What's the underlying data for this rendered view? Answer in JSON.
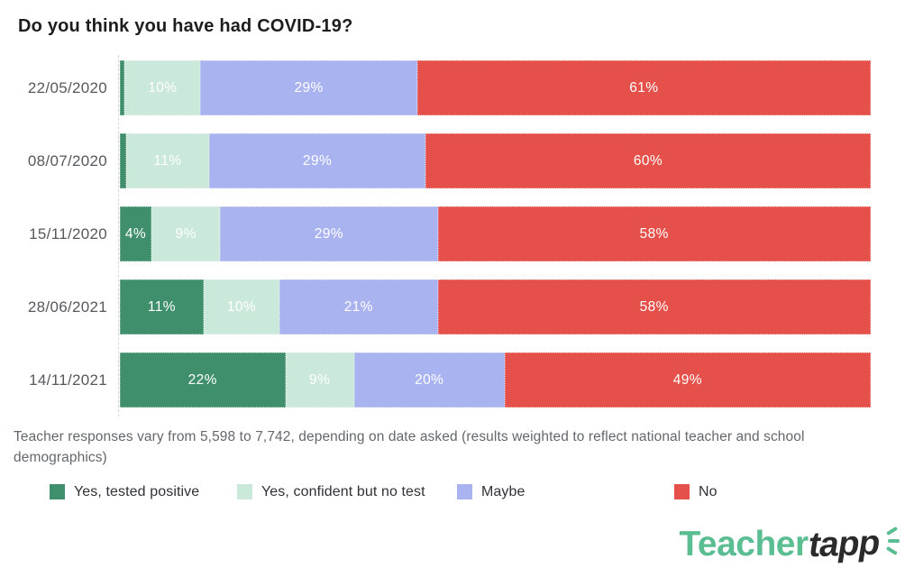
{
  "chart_data": {
    "type": "bar",
    "variant": "horizontal-stacked-100pct",
    "title": "Do you think you have had COVID-19?",
    "categories": [
      "22/05/2020",
      "08/07/2020",
      "15/11/2020",
      "28/06/2021",
      "14/11/2021"
    ],
    "series": [
      {
        "name": "Yes, tested positive",
        "color": "#3F8F6D",
        "values": [
          0.4,
          0.6,
          4,
          11,
          22
        ],
        "labels": [
          "",
          "",
          "4%",
          "11%",
          "22%"
        ]
      },
      {
        "name": "Yes, confident but no test",
        "color": "#CAE9DA",
        "values": [
          10,
          11,
          9,
          10,
          9
        ],
        "labels": [
          "10%",
          "11%",
          "9%",
          "10%",
          "9%"
        ]
      },
      {
        "name": "Maybe",
        "color": "#A9B3F0",
        "values": [
          29,
          29,
          29,
          21,
          20
        ],
        "labels": [
          "29%",
          "29%",
          "29%",
          "21%",
          "20%"
        ]
      },
      {
        "name": "No",
        "color": "#E5514A",
        "values": [
          61,
          60,
          58,
          58,
          49
        ],
        "labels": [
          "61%",
          "60%",
          "58%",
          "58%",
          "49%"
        ]
      }
    ],
    "xlim": [
      0,
      100
    ],
    "value_label_style": "inside-center-white",
    "legend_position": "bottom",
    "grid": "off"
  },
  "footnote": {
    "text": "Teacher responses vary from 5,598 to 7,742, depending on date asked (results weighted to reflect national teacher and school demographics)"
  },
  "legend": {
    "items": [
      {
        "label": "Yes, tested positive",
        "color": "#3F8F6D"
      },
      {
        "label": "Yes, confident but no test",
        "color": "#CAE9DA"
      },
      {
        "label": "Maybe",
        "color": "#A9B3F0"
      },
      {
        "label": "No",
        "color": "#E5514A"
      }
    ]
  },
  "logo": {
    "teacher": "Teacher",
    "tapp": "tapp",
    "teacher_color": "#5BBD92",
    "tapp_color": "#2B2B2B",
    "sparkle_color": "#5BBD92"
  }
}
